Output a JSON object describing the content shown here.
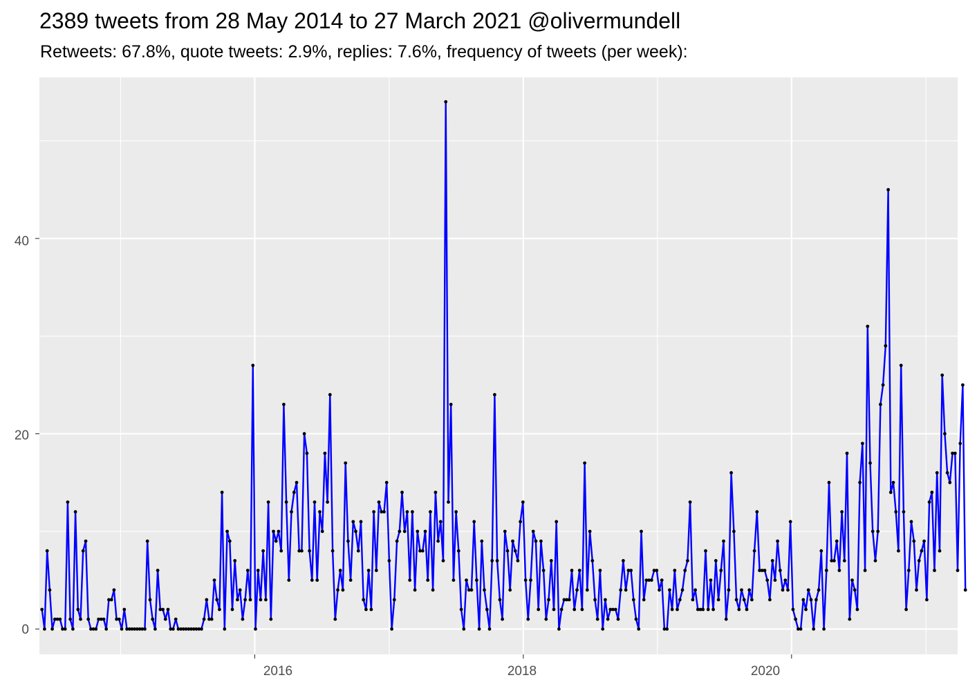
{
  "chart_data": {
    "type": "line",
    "title": "2389 tweets from 28 May 2014 to 27 March 2021 @olivermundell",
    "subtitle": "Retweets: 67.8%, quote tweets: 2.9%, replies: 7.6%, frequency of tweets (per week):",
    "xlabel": "",
    "ylabel": "",
    "x_range": [
      "2014-05-25",
      "2021-03-28"
    ],
    "x_tick_labels": [
      "2016",
      "2018",
      "2020"
    ],
    "y_ticks": [
      0,
      20,
      40
    ],
    "ylim": [
      -2.6,
      56.5
    ],
    "grid": true,
    "colors": {
      "line": "#0000ff",
      "point": "#000000",
      "panel": "#ebebeb",
      "grid": "#ffffff"
    },
    "x_start": "2014-06-01",
    "x_interval_days": 7,
    "values": [
      2,
      0,
      8,
      4,
      0,
      1,
      1,
      1,
      0,
      0,
      13,
      1,
      0,
      12,
      2,
      1,
      8,
      9,
      1,
      0,
      0,
      0,
      1,
      1,
      1,
      0,
      3,
      3,
      4,
      1,
      1,
      0,
      2,
      0,
      0,
      0,
      0,
      0,
      0,
      0,
      0,
      9,
      3,
      1,
      0,
      6,
      2,
      2,
      1,
      2,
      0,
      0,
      1,
      0,
      0,
      0,
      0,
      0,
      0,
      0,
      0,
      0,
      0,
      1,
      3,
      1,
      1,
      5,
      3,
      2,
      14,
      0,
      10,
      9,
      2,
      7,
      3,
      4,
      1,
      3,
      6,
      3,
      27,
      0,
      6,
      3,
      8,
      3,
      13,
      1,
      10,
      9,
      10,
      8,
      23,
      13,
      5,
      12,
      14,
      15,
      8,
      8,
      20,
      18,
      8,
      5,
      13,
      5,
      12,
      10,
      18,
      13,
      24,
      8,
      1,
      4,
      6,
      4,
      17,
      9,
      5,
      11,
      10,
      8,
      11,
      3,
      2,
      6,
      2,
      12,
      6,
      13,
      12,
      12,
      15,
      7,
      0,
      3,
      9,
      10,
      14,
      10,
      12,
      5,
      12,
      4,
      10,
      8,
      8,
      10,
      5,
      12,
      4,
      14,
      9,
      11,
      7,
      54,
      13,
      23,
      5,
      12,
      8,
      2,
      0,
      5,
      4,
      4,
      11,
      5,
      0,
      9,
      4,
      2,
      0,
      7,
      24,
      7,
      3,
      1,
      10,
      8,
      4,
      9,
      8,
      7,
      11,
      13,
      5,
      1,
      5,
      10,
      9,
      2,
      9,
      6,
      1,
      3,
      7,
      2,
      11,
      0,
      2,
      3,
      3,
      3,
      6,
      2,
      4,
      6,
      2,
      17,
      4,
      10,
      7,
      3,
      1,
      6,
      0,
      3,
      1,
      2,
      2,
      2,
      1,
      4,
      7,
      4,
      6,
      6,
      3,
      1,
      0,
      10,
      3,
      5,
      5,
      5,
      6,
      6,
      4,
      5,
      0,
      0,
      4,
      2,
      6,
      2,
      3,
      4,
      6,
      7,
      13,
      3,
      4,
      2,
      2,
      2,
      8,
      2,
      5,
      2,
      7,
      3,
      6,
      9,
      1,
      4,
      16,
      10,
      3,
      2,
      4,
      3,
      2,
      4,
      3,
      8,
      12,
      6,
      6,
      6,
      5,
      3,
      7,
      5,
      9,
      6,
      4,
      5,
      4,
      11,
      2,
      1,
      0,
      0,
      3,
      2,
      4,
      3,
      0,
      3,
      4,
      8,
      0,
      6,
      15,
      7,
      7,
      9,
      6,
      12,
      7,
      18,
      1,
      5,
      4,
      2,
      15,
      19,
      6,
      31,
      17,
      10,
      7,
      10,
      23,
      25,
      29,
      45,
      14,
      15,
      12,
      8,
      27,
      12,
      2,
      6,
      11,
      9,
      4,
      7,
      8,
      9,
      3,
      13,
      14,
      6,
      16,
      8,
      26,
      20,
      16,
      15,
      18,
      18,
      6,
      19,
      25,
      4
    ]
  }
}
